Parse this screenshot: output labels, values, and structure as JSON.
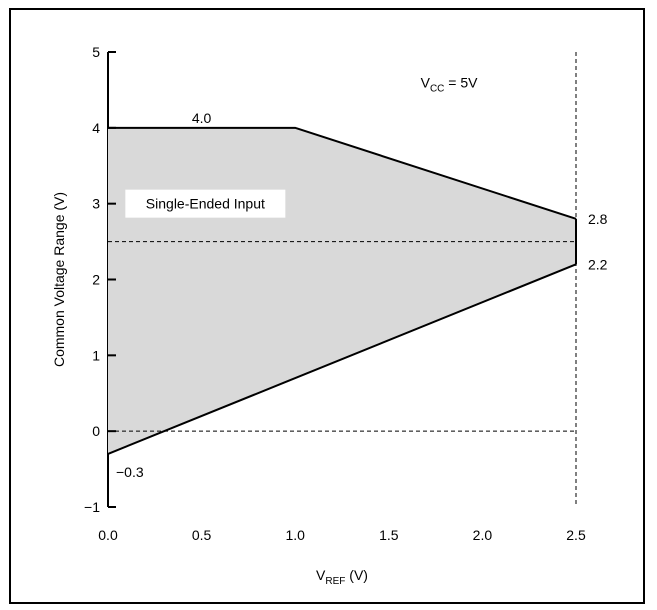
{
  "chart_data": {
    "type": "area",
    "xlabel": {
      "main": "V",
      "sub": "REF",
      "suffix": " (V)"
    },
    "ylabel": "Common Voltage Range (V)",
    "xlim": [
      0.0,
      2.5
    ],
    "ylim": [
      -1,
      5
    ],
    "xticks": [
      "0.0",
      "0.5",
      "1.0",
      "1.5",
      "2.0",
      "2.5"
    ],
    "yticks": [
      "−1",
      "0",
      "1",
      "2",
      "3",
      "4",
      "5"
    ],
    "series": [
      {
        "role": "upper",
        "x": [
          0.0,
          1.0,
          2.5
        ],
        "y": [
          4.0,
          4.0,
          2.8
        ]
      },
      {
        "role": "lower",
        "x": [
          0.0,
          2.5
        ],
        "y": [
          -0.3,
          2.2
        ]
      }
    ],
    "reference_lines": [
      {
        "orientation": "horizontal",
        "value": 2.5,
        "style": "dashed"
      },
      {
        "orientation": "horizontal",
        "value": 0,
        "style": "dashed"
      },
      {
        "orientation": "vertical",
        "value": 2.5,
        "style": "dashed"
      }
    ],
    "annotations": [
      {
        "text": "4.0",
        "x": 0.5,
        "y": 4.0
      },
      {
        "text": "2.8",
        "x": 2.5,
        "y": 2.8
      },
      {
        "text": "2.2",
        "x": 2.5,
        "y": 2.2
      },
      {
        "text": "−0.3",
        "x": 0.0,
        "y": -0.3
      }
    ],
    "region_label": "Single-Ended Input",
    "condition": {
      "main": "V",
      "sub": "CC",
      "suffix": " = 5V"
    },
    "fill_color": "#d9d9d9",
    "line_color": "#000000",
    "grid": false
  }
}
